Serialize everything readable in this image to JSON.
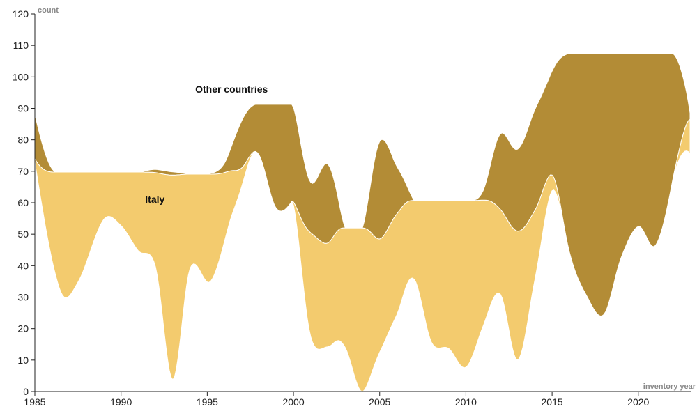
{
  "chart_data": {
    "type": "area",
    "xlabel": "inventory year",
    "ylabel": "count",
    "xlim": [
      1985,
      2023
    ],
    "ylim": [
      0,
      120
    ],
    "x_ticks": [
      1985,
      1990,
      1995,
      2000,
      2005,
      2010,
      2015,
      2020
    ],
    "y_ticks": [
      0,
      10,
      20,
      30,
      40,
      50,
      60,
      70,
      80,
      90,
      100,
      110,
      120
    ],
    "colors": {
      "Italy": "#f3cb6e",
      "Other countries": "#b38c36"
    },
    "series": [
      {
        "name": "Italy",
        "points": [
          [
            1985,
            1
          ],
          [
            1986.5,
            38
          ],
          [
            1987.5,
            35
          ],
          [
            1989,
            15
          ],
          [
            1990,
            17
          ],
          [
            1991,
            25
          ],
          [
            1992,
            30
          ],
          [
            1993,
            65
          ],
          [
            1994,
            30
          ],
          [
            1995.2,
            34
          ],
          [
            1996.5,
            13
          ],
          [
            1997.5,
            1
          ],
          [
            1999,
            0
          ],
          [
            2000,
            1
          ],
          [
            2001,
            33
          ],
          [
            2002,
            33
          ],
          [
            2003,
            38
          ],
          [
            2004,
            52
          ],
          [
            2005,
            36
          ],
          [
            2006,
            32
          ],
          [
            2007,
            25
          ],
          [
            2008,
            45
          ],
          [
            2009,
            47
          ],
          [
            2010,
            53
          ],
          [
            2011,
            40
          ],
          [
            2012,
            27
          ],
          [
            2013,
            41
          ],
          [
            2014,
            22
          ],
          [
            2015,
            5
          ],
          [
            2016,
            0
          ],
          [
            2018,
            0
          ],
          [
            2020,
            0
          ],
          [
            2022,
            0
          ],
          [
            2023,
            11
          ]
        ]
      },
      {
        "name": "Other countries",
        "points": [
          [
            1985,
            14
          ],
          [
            1986,
            1
          ],
          [
            1987,
            0
          ],
          [
            1989,
            0
          ],
          [
            1990,
            0
          ],
          [
            1991,
            0
          ],
          [
            1992,
            1
          ],
          [
            1993,
            1
          ],
          [
            1994,
            0
          ],
          [
            1995,
            0
          ],
          [
            1996,
            3
          ],
          [
            1997,
            15
          ],
          [
            1998,
            16
          ],
          [
            1999,
            33
          ],
          [
            2000,
            30
          ],
          [
            2001,
            16
          ],
          [
            2002,
            25
          ],
          [
            2003,
            0
          ],
          [
            2004,
            0
          ],
          [
            2005,
            31
          ],
          [
            2006,
            15
          ],
          [
            2007,
            0
          ],
          [
            2008,
            0
          ],
          [
            2009,
            0
          ],
          [
            2010,
            0
          ],
          [
            2011,
            3
          ],
          [
            2012,
            24
          ],
          [
            2013,
            26
          ],
          [
            2014,
            32
          ],
          [
            2015,
            33
          ],
          [
            2016,
            63
          ],
          [
            2017,
            77
          ],
          [
            2018,
            83
          ],
          [
            2019,
            65
          ],
          [
            2020,
            55
          ],
          [
            2021,
            61
          ],
          [
            2022,
            40
          ],
          [
            2023,
            2
          ]
        ]
      }
    ],
    "labels": [
      {
        "text": "Italy",
        "x": 1991.4,
        "y": 60
      },
      {
        "text": "Other countries",
        "x": 1994.3,
        "y": 95
      }
    ]
  }
}
